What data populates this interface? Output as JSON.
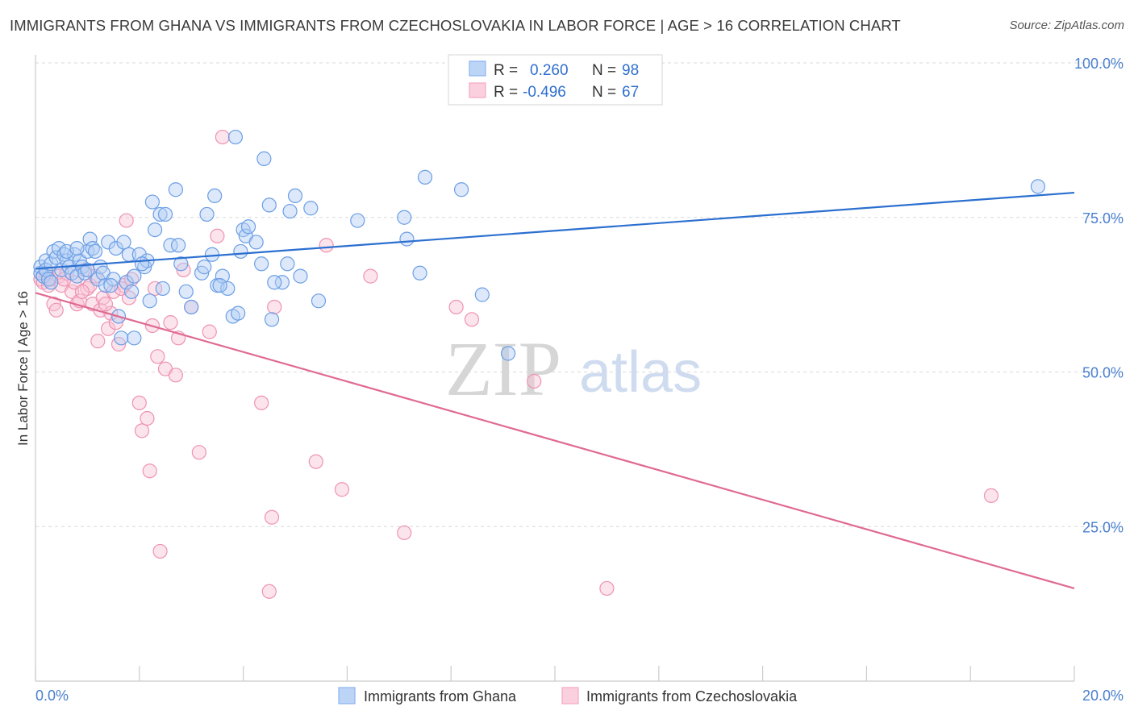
{
  "header": {
    "title": "IMMIGRANTS FROM GHANA VS IMMIGRANTS FROM CZECHOSLOVAKIA IN LABOR FORCE | AGE > 16 CORRELATION CHART",
    "source": "Source: ZipAtlas.com"
  },
  "watermark": {
    "zip": "ZIP",
    "atlas": "atlas"
  },
  "stats_legend": {
    "rows": [
      {
        "r_label": "R =",
        "r_value": "0.260",
        "n_label": "N =",
        "n_value": "98",
        "color": "#8ab4f0"
      },
      {
        "r_label": "R =",
        "r_value": "-0.496",
        "n_label": "N =",
        "n_value": "67",
        "color": "#f5b3c8"
      }
    ]
  },
  "colors": {
    "ghana": "#8ab4f0",
    "ghana_line": "#2b6fd0",
    "czech": "#f5a8c0",
    "czech_line": "#e06a92",
    "grid": "#d9d9d9",
    "tick_text": "#4a7fd0"
  },
  "chart_data": {
    "type": "scatter",
    "title": "IMMIGRANTS FROM GHANA VS IMMIGRANTS FROM CZECHOSLOVAKIA IN LABOR FORCE | AGE > 16 CORRELATION CHART",
    "xlabel": "",
    "ylabel": "In Labor Force | Age > 16",
    "xlim": [
      0,
      20
    ],
    "ylim": [
      0,
      100
    ],
    "x_tick_labels": [
      "0.0%",
      "20.0%"
    ],
    "y_ticks": [
      25,
      50,
      75,
      100
    ],
    "y_tick_labels": [
      "25.0%",
      "50.0%",
      "75.0%",
      "100.0%"
    ],
    "grid": true,
    "legend_position": "bottom-center",
    "series": [
      {
        "name": "Immigrants from Ghana",
        "color": "#8ab4f0",
        "trend": {
          "x": [
            0,
            20
          ],
          "y": [
            66.7,
            79.0
          ]
        },
        "points": [
          [
            0.1,
            66
          ],
          [
            0.1,
            67
          ],
          [
            0.15,
            65.5
          ],
          [
            0.2,
            68
          ],
          [
            0.2,
            66.5
          ],
          [
            0.25,
            65
          ],
          [
            0.3,
            67.5
          ],
          [
            0.35,
            69.5
          ],
          [
            0.4,
            68.5
          ],
          [
            0.45,
            70
          ],
          [
            0.5,
            66.5
          ],
          [
            0.55,
            69
          ],
          [
            0.6,
            68
          ],
          [
            0.65,
            67
          ],
          [
            0.7,
            66
          ],
          [
            0.75,
            69
          ],
          [
            0.8,
            65.5
          ],
          [
            0.85,
            68
          ],
          [
            0.9,
            67
          ],
          [
            0.95,
            66
          ],
          [
            1.0,
            69.5
          ],
          [
            1.05,
            71.5
          ],
          [
            1.1,
            70
          ],
          [
            1.15,
            69.5
          ],
          [
            1.2,
            65
          ],
          [
            1.25,
            67
          ],
          [
            1.3,
            66
          ],
          [
            1.35,
            64
          ],
          [
            1.4,
            71
          ],
          [
            1.5,
            65
          ],
          [
            1.55,
            70
          ],
          [
            1.6,
            59
          ],
          [
            1.7,
            71
          ],
          [
            1.75,
            64.5
          ],
          [
            1.8,
            69
          ],
          [
            1.85,
            63
          ],
          [
            1.9,
            65.5
          ],
          [
            2.0,
            69
          ],
          [
            2.1,
            67
          ],
          [
            2.15,
            68
          ],
          [
            2.2,
            61.5
          ],
          [
            2.25,
            77.5
          ],
          [
            2.3,
            73
          ],
          [
            2.4,
            75.5
          ],
          [
            2.5,
            75.5
          ],
          [
            2.6,
            70.5
          ],
          [
            2.7,
            79.5
          ],
          [
            2.75,
            70.5
          ],
          [
            2.8,
            67.5
          ],
          [
            2.9,
            63
          ],
          [
            3.0,
            60.5
          ],
          [
            3.2,
            66
          ],
          [
            3.25,
            67
          ],
          [
            3.3,
            75.5
          ],
          [
            3.4,
            69
          ],
          [
            3.45,
            78.5
          ],
          [
            3.5,
            64
          ],
          [
            3.6,
            65.5
          ],
          [
            3.7,
            63.5
          ],
          [
            3.8,
            59
          ],
          [
            3.85,
            88
          ],
          [
            3.9,
            59.5
          ],
          [
            3.95,
            69.5
          ],
          [
            4.0,
            73
          ],
          [
            4.05,
            72
          ],
          [
            4.1,
            73.5
          ],
          [
            4.25,
            71
          ],
          [
            4.35,
            67.5
          ],
          [
            4.4,
            84.5
          ],
          [
            4.5,
            77
          ],
          [
            4.55,
            58.5
          ],
          [
            4.75,
            64.5
          ],
          [
            4.85,
            67.5
          ],
          [
            4.9,
            76
          ],
          [
            5.0,
            78.5
          ],
          [
            5.1,
            65.5
          ],
          [
            5.3,
            76.5
          ],
          [
            5.45,
            61.5
          ],
          [
            6.2,
            74.5
          ],
          [
            7.1,
            75
          ],
          [
            7.15,
            71.5
          ],
          [
            7.4,
            66
          ],
          [
            7.5,
            81.5
          ],
          [
            8.2,
            79.5
          ],
          [
            8.6,
            62.5
          ],
          [
            9.1,
            53
          ],
          [
            19.3,
            80
          ],
          [
            0.6,
            69.5
          ],
          [
            1.65,
            55.5
          ],
          [
            1.9,
            55.5
          ],
          [
            2.45,
            63.5
          ],
          [
            0.3,
            64.5
          ],
          [
            1.0,
            66.5
          ],
          [
            2.05,
            67.5
          ],
          [
            3.55,
            64
          ],
          [
            0.8,
            70
          ],
          [
            4.6,
            64.5
          ],
          [
            1.45,
            64
          ]
        ]
      },
      {
        "name": "Immigrants from Czechoslovakia",
        "color": "#f5a8c0",
        "trend": {
          "x": [
            0,
            20
          ],
          "y": [
            62.8,
            15.0
          ]
        },
        "points": [
          [
            0.1,
            65
          ],
          [
            0.15,
            64.5
          ],
          [
            0.2,
            66
          ],
          [
            0.25,
            64
          ],
          [
            0.3,
            65
          ],
          [
            0.35,
            61
          ],
          [
            0.4,
            60
          ],
          [
            0.45,
            65.5
          ],
          [
            0.5,
            64
          ],
          [
            0.6,
            66
          ],
          [
            0.7,
            63
          ],
          [
            0.75,
            64.5
          ],
          [
            0.8,
            61
          ],
          [
            0.85,
            61.5
          ],
          [
            0.95,
            66.5
          ],
          [
            1.0,
            63.5
          ],
          [
            1.05,
            64
          ],
          [
            1.1,
            61
          ],
          [
            1.2,
            55
          ],
          [
            1.25,
            60
          ],
          [
            1.3,
            62
          ],
          [
            1.4,
            57
          ],
          [
            1.45,
            59.5
          ],
          [
            1.55,
            58
          ],
          [
            1.6,
            54.5
          ],
          [
            1.7,
            64
          ],
          [
            1.75,
            74.5
          ],
          [
            1.8,
            62
          ],
          [
            1.85,
            65
          ],
          [
            2.0,
            45
          ],
          [
            2.05,
            40.5
          ],
          [
            2.15,
            42.5
          ],
          [
            2.2,
            34
          ],
          [
            2.25,
            57.5
          ],
          [
            2.35,
            52.5
          ],
          [
            2.4,
            21
          ],
          [
            2.5,
            50.5
          ],
          [
            2.6,
            58
          ],
          [
            2.7,
            49.5
          ],
          [
            2.75,
            55.5
          ],
          [
            2.85,
            66.5
          ],
          [
            3.0,
            60.5
          ],
          [
            3.15,
            37
          ],
          [
            3.35,
            56.5
          ],
          [
            3.5,
            72
          ],
          [
            3.6,
            88
          ],
          [
            4.35,
            45
          ],
          [
            4.55,
            26.5
          ],
          [
            4.5,
            14.5
          ],
          [
            4.6,
            60.5
          ],
          [
            5.4,
            35.5
          ],
          [
            5.6,
            70.5
          ],
          [
            5.9,
            31
          ],
          [
            6.45,
            65.5
          ],
          [
            7.1,
            24
          ],
          [
            8.1,
            60.5
          ],
          [
            8.4,
            58.5
          ],
          [
            9.6,
            48.5
          ],
          [
            11.0,
            15
          ],
          [
            18.4,
            30
          ],
          [
            0.55,
            65
          ],
          [
            1.15,
            65.5
          ],
          [
            1.5,
            63
          ],
          [
            2.3,
            63.5
          ],
          [
            0.9,
            63
          ],
          [
            1.35,
            61
          ],
          [
            1.65,
            63.5
          ]
        ]
      }
    ]
  },
  "bottom_legend": {
    "items": [
      {
        "label": "Immigrants from Ghana",
        "color": "#8ab4f0"
      },
      {
        "label": "Immigrants from Czechoslovakia",
        "color": "#f5a8c0"
      }
    ]
  }
}
